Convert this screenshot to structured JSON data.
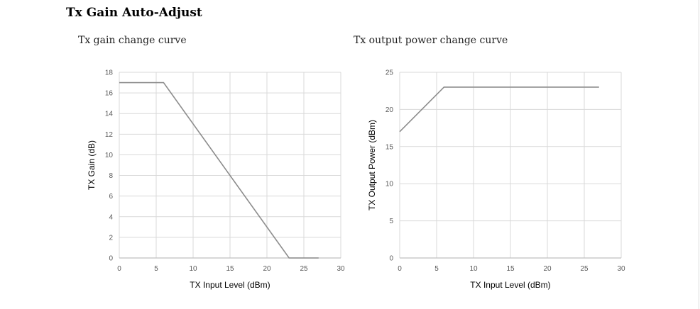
{
  "header": {
    "title": "Tx Gain Auto-Adjust"
  },
  "chart_data": [
    {
      "type": "line",
      "title": "Tx gain change curve",
      "xlabel": "TX Input Level  (dBm)",
      "ylabel": "TX Gain (dB)",
      "xlim": [
        0,
        30
      ],
      "ylim": [
        0,
        18
      ],
      "x_ticks": [
        0,
        5,
        10,
        15,
        20,
        25,
        30
      ],
      "y_ticks": [
        0,
        2,
        4,
        6,
        8,
        10,
        12,
        14,
        16,
        18
      ],
      "grid": true,
      "legend": "none",
      "line_color": "#8c8c8c",
      "series": [
        {
          "x": [
            0,
            6,
            23,
            27
          ],
          "y": [
            17,
            17,
            0,
            0
          ]
        }
      ]
    },
    {
      "type": "line",
      "title": "Tx output power change curve",
      "xlabel": "TX Input Level  (dBm)",
      "ylabel": "TX Output Power  (dBm)",
      "xlim": [
        0,
        30
      ],
      "ylim": [
        0,
        25
      ],
      "x_ticks": [
        0,
        5,
        10,
        15,
        20,
        25,
        30
      ],
      "y_ticks": [
        0,
        5,
        10,
        15,
        20,
        25
      ],
      "grid": true,
      "legend": "none",
      "line_color": "#8c8c8c",
      "series": [
        {
          "x": [
            0,
            6,
            27
          ],
          "y": [
            17,
            23,
            23
          ]
        }
      ]
    }
  ]
}
